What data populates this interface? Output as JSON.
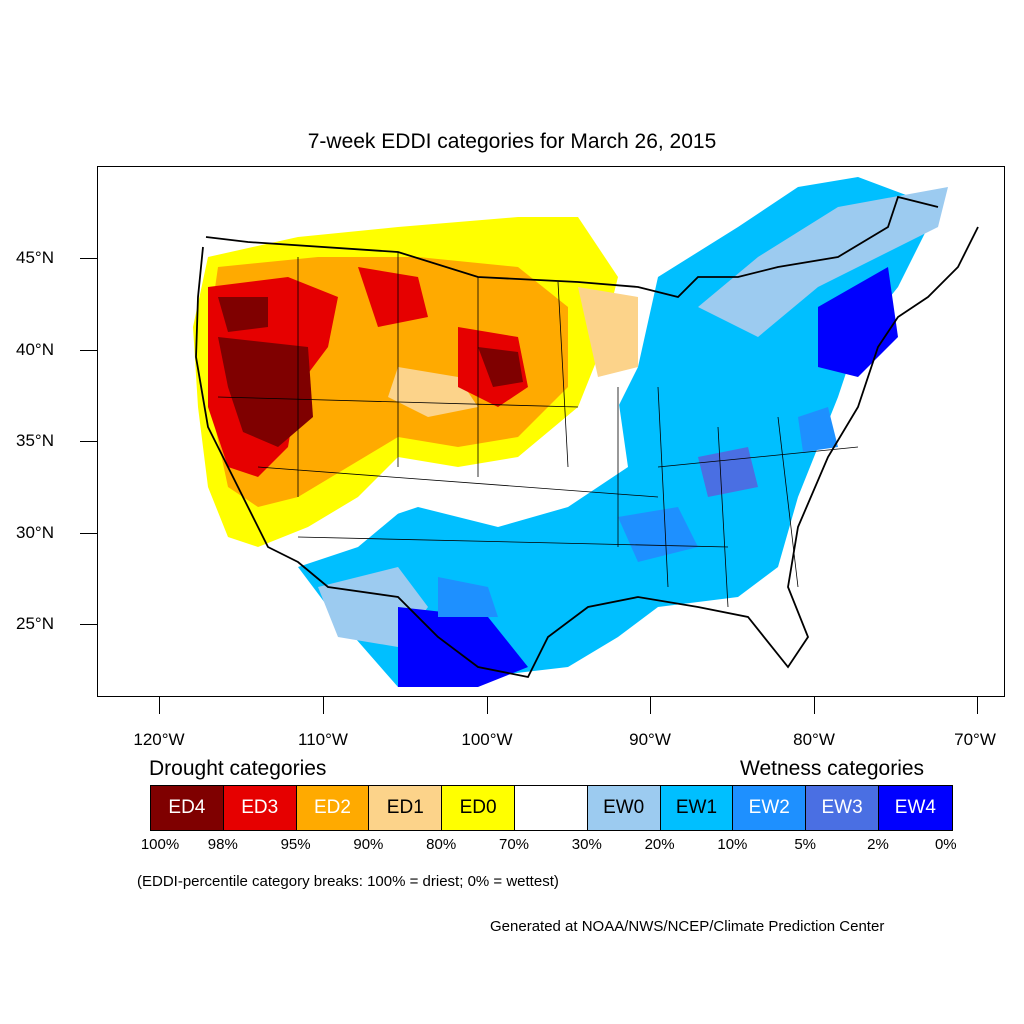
{
  "title": "7-week EDDI categories for March 26, 2015",
  "map": {
    "y_labels": [
      "45°N",
      "40°N",
      "35°N",
      "30°N",
      "25°N"
    ],
    "x_labels": [
      "120°W",
      "110°W",
      "100°W",
      "90°W",
      "80°W",
      "70°W"
    ]
  },
  "legend": {
    "drought_heading": "Drought categories",
    "wetness_heading": "Wetness categories",
    "categories": [
      {
        "label": "ED4",
        "color": "#7f0000",
        "text_color": "#ffffff"
      },
      {
        "label": "ED3",
        "color": "#e60000",
        "text_color": "#ffffff"
      },
      {
        "label": "ED2",
        "color": "#ffaa00",
        "text_color": "#ffffff"
      },
      {
        "label": "ED1",
        "color": "#fcd38a",
        "text_color": "#000000"
      },
      {
        "label": "ED0",
        "color": "#ffff00",
        "text_color": "#000000"
      },
      {
        "label": "",
        "color": "#ffffff",
        "text_color": "#000000"
      },
      {
        "label": "EW0",
        "color": "#9ccbf0",
        "text_color": "#000000"
      },
      {
        "label": "EW1",
        "color": "#00bfff",
        "text_color": "#000000"
      },
      {
        "label": "EW2",
        "color": "#1e90ff",
        "text_color": "#ffffff"
      },
      {
        "label": "EW3",
        "color": "#4a6fe3",
        "text_color": "#ffffff"
      },
      {
        "label": "EW4",
        "color": "#0000ff",
        "text_color": "#ffffff"
      }
    ],
    "breaks": [
      "100%",
      "98%",
      "95%",
      "90%",
      "80%",
      "70%",
      "30%",
      "20%",
      "10%",
      "5%",
      "2%",
      "0%"
    ]
  },
  "note": "(EDDI-percentile category breaks: 100% = driest; 0% = wettest)",
  "credit": "Generated at NOAA/NWS/NCEP/Climate Prediction Center"
}
